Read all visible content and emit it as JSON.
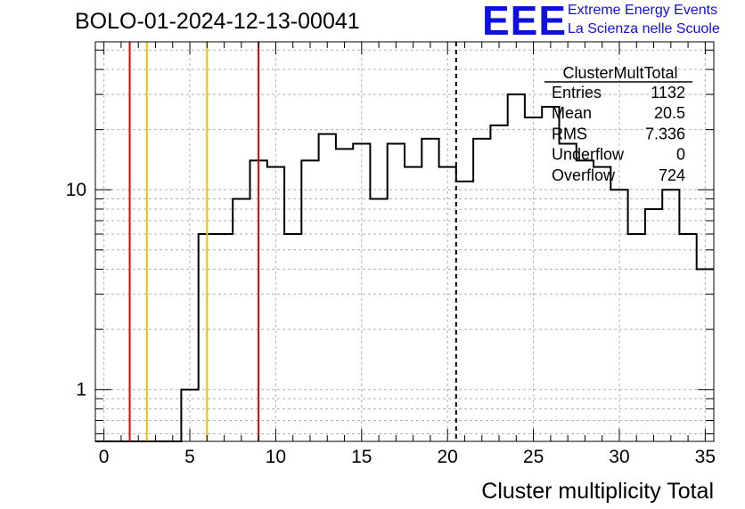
{
  "header": {
    "title": "BOLO-01-2024-12-13-00041",
    "logo_text": "EEE",
    "logo_line1": "Extreme Energy Events",
    "logo_line2": "La Scienza nelle Scuole"
  },
  "colors": {
    "logo": "#0f0fe0",
    "red_line": "#e00000",
    "yellow_line": "#f0c000",
    "grid": "#b0b0b0"
  },
  "chart_data": {
    "type": "bar",
    "histogram": true,
    "log_y": true,
    "xlabel": "Cluster multiplicity Total",
    "ylabel": "",
    "xlim": [
      -0.5,
      35.5
    ],
    "ylim": [
      0.55,
      55
    ],
    "grid": true,
    "x_ticks": [
      "0",
      "5",
      "10",
      "15",
      "20",
      "25",
      "30",
      "35"
    ],
    "y_ticks": [
      "1",
      "10"
    ],
    "bins": [
      {
        "x": 0,
        "value": 0
      },
      {
        "x": 1,
        "value": 0
      },
      {
        "x": 2,
        "value": 0
      },
      {
        "x": 3,
        "value": 0
      },
      {
        "x": 4,
        "value": 0
      },
      {
        "x": 5,
        "value": 1
      },
      {
        "x": 6,
        "value": 6
      },
      {
        "x": 7,
        "value": 6
      },
      {
        "x": 8,
        "value": 9
      },
      {
        "x": 9,
        "value": 14
      },
      {
        "x": 10,
        "value": 13
      },
      {
        "x": 11,
        "value": 6
      },
      {
        "x": 12,
        "value": 14
      },
      {
        "x": 13,
        "value": 19
      },
      {
        "x": 14,
        "value": 16
      },
      {
        "x": 15,
        "value": 17
      },
      {
        "x": 16,
        "value": 9
      },
      {
        "x": 17,
        "value": 17
      },
      {
        "x": 18,
        "value": 13
      },
      {
        "x": 19,
        "value": 18
      },
      {
        "x": 20,
        "value": 13
      },
      {
        "x": 21,
        "value": 11
      },
      {
        "x": 22,
        "value": 18
      },
      {
        "x": 23,
        "value": 21
      },
      {
        "x": 24,
        "value": 30
      },
      {
        "x": 25,
        "value": 23
      },
      {
        "x": 26,
        "value": 26
      },
      {
        "x": 27,
        "value": 17
      },
      {
        "x": 28,
        "value": 14
      },
      {
        "x": 29,
        "value": 13
      },
      {
        "x": 30,
        "value": 10
      },
      {
        "x": 31,
        "value": 6
      },
      {
        "x": 32,
        "value": 8
      },
      {
        "x": 33,
        "value": 10
      },
      {
        "x": 34,
        "value": 6
      },
      {
        "x": 35,
        "value": 4
      }
    ],
    "vertical_lines": [
      {
        "x": 1.5,
        "color": "#e00000",
        "style": "solid"
      },
      {
        "x": 2.5,
        "color": "#f0c000",
        "style": "solid"
      },
      {
        "x": 6.0,
        "color": "#f0c000",
        "style": "solid"
      },
      {
        "x": 9.0,
        "color": "#e00000",
        "style": "solid"
      },
      {
        "x": 20.5,
        "color": "#000000",
        "style": "dashed"
      }
    ],
    "stats_box": {
      "title": "ClusterMultTotal",
      "rows": [
        {
          "label": "Entries",
          "value": "1132"
        },
        {
          "label": "Mean",
          "value": "20.5"
        },
        {
          "label": "RMS",
          "value": "7.336"
        },
        {
          "label": "Underflow",
          "value": "0"
        },
        {
          "label": "Overflow",
          "value": "724"
        }
      ]
    }
  }
}
